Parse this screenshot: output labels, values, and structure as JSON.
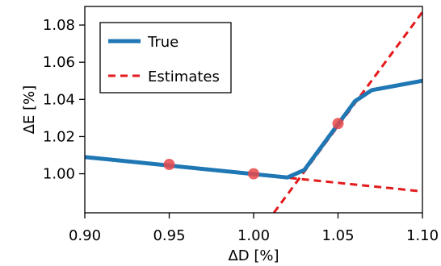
{
  "chart_data": {
    "type": "line",
    "title": "",
    "xlabel": "ΔD [%]",
    "ylabel": "ΔE [%]",
    "xlim": [
      0.9,
      1.1
    ],
    "ylim": [
      0.979,
      1.09
    ],
    "xticks": [
      0.9,
      0.95,
      1.0,
      1.05,
      1.1
    ],
    "xtick_labels": [
      "0.90",
      "0.95",
      "1.00",
      "1.05",
      "1.10"
    ],
    "yticks": [
      1.0,
      1.02,
      1.04,
      1.06,
      1.08
    ],
    "ytick_labels": [
      "1.00",
      "1.02",
      "1.04",
      "1.06",
      "1.08"
    ],
    "grid": false,
    "legend_position": "top-left",
    "series": [
      {
        "name": "True",
        "style": "solid",
        "color": "#1f77b4",
        "x": [
          0.9,
          1.02,
          1.03,
          1.06,
          1.07,
          1.1
        ],
        "y": [
          1.009,
          0.998,
          1.002,
          1.039,
          1.045,
          1.05
        ]
      },
      {
        "name": "Estimates",
        "style": "dashed",
        "color": "#e41a1c",
        "lines": [
          {
            "x": [
              0.9,
              1.1
            ],
            "y": [
              1.009,
              0.9905
            ]
          },
          {
            "x": [
              1.012,
              1.1
            ],
            "y": [
              0.979,
              1.087
            ]
          }
        ]
      }
    ],
    "markers": {
      "color": "#e8484a",
      "x": [
        0.95,
        1.0,
        1.05
      ],
      "y": [
        1.005,
        1.0,
        1.027
      ]
    }
  }
}
